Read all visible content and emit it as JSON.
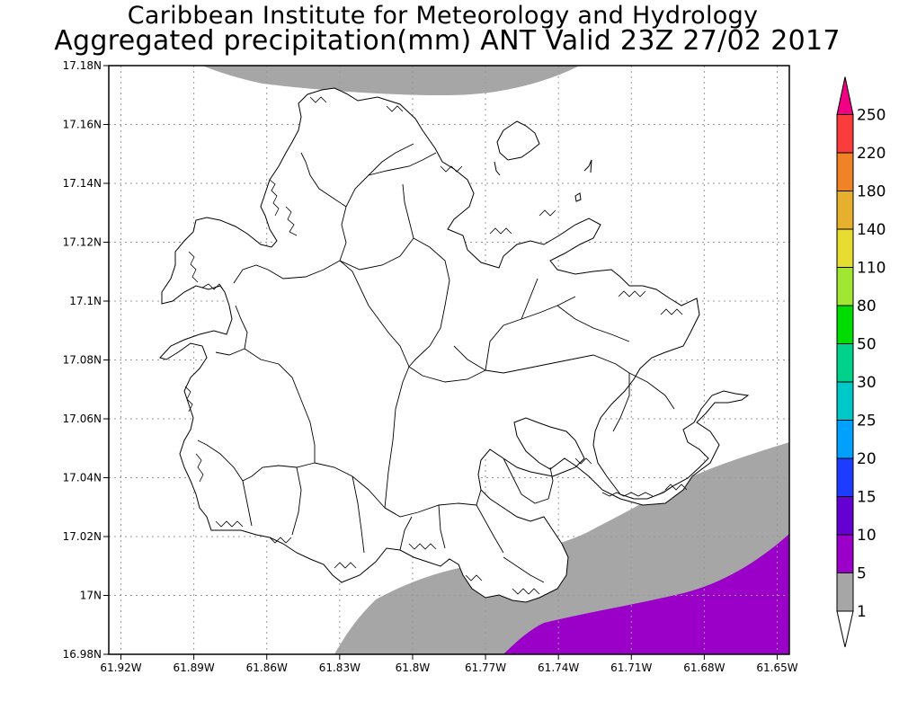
{
  "header": {
    "line1": "Caribbean Institute for Meteorology and Hydrology",
    "line2": "Aggregated precipitation(mm) ANT Valid 23Z 27/02 2017"
  },
  "map": {
    "region": "Antigua",
    "lon_range": [
      -61.925,
      -61.645
    ],
    "lat_range": [
      16.98,
      17.18
    ],
    "grid": true,
    "y_ticks": [
      {
        "lat": 17.18,
        "label": "17.18N"
      },
      {
        "lat": 17.16,
        "label": "17.16N"
      },
      {
        "lat": 17.14,
        "label": "17.14N"
      },
      {
        "lat": 17.12,
        "label": "17.12N"
      },
      {
        "lat": 17.1,
        "label": "17.1N"
      },
      {
        "lat": 17.08,
        "label": "17.08N"
      },
      {
        "lat": 17.06,
        "label": "17.06N"
      },
      {
        "lat": 17.04,
        "label": "17.04N"
      },
      {
        "lat": 17.02,
        "label": "17.02N"
      },
      {
        "lat": 17.0,
        "label": "17N"
      },
      {
        "lat": 16.98,
        "label": "16.98N"
      }
    ],
    "x_ticks": [
      {
        "lon": -61.92,
        "label": "61.92W"
      },
      {
        "lon": -61.89,
        "label": "61.89W"
      },
      {
        "lon": -61.86,
        "label": "61.86W"
      },
      {
        "lon": -61.83,
        "label": "61.83W"
      },
      {
        "lon": -61.8,
        "label": "61.8W"
      },
      {
        "lon": -61.77,
        "label": "61.77W"
      },
      {
        "lon": -61.74,
        "label": "61.74W"
      },
      {
        "lon": -61.71,
        "label": "61.71W"
      },
      {
        "lon": -61.68,
        "label": "61.68W"
      },
      {
        "lon": -61.65,
        "label": "61.65W"
      }
    ],
    "shaded_areas": [
      {
        "name": "north",
        "class": "1-5 mm",
        "color": "#a6a6a6"
      },
      {
        "name": "southeast",
        "class": "1-5 mm",
        "color": "#a6a6a6"
      },
      {
        "name": "southeast-core",
        "class": "5-10 mm",
        "color": "#9b00c9"
      }
    ]
  },
  "colorbar": {
    "bins": [
      {
        "label": "1",
        "color": "#ffffff"
      },
      {
        "label": "5",
        "color": "#a6a6a6"
      },
      {
        "label": "10",
        "color": "#9b00c9"
      },
      {
        "label": "15",
        "color": "#6400d2"
      },
      {
        "label": "20",
        "color": "#1e3cff"
      },
      {
        "label": "25",
        "color": "#00a0ff"
      },
      {
        "label": "30",
        "color": "#00c8c8"
      },
      {
        "label": "50",
        "color": "#00d28c"
      },
      {
        "label": "80",
        "color": "#00dc00"
      },
      {
        "label": "110",
        "color": "#a0e632"
      },
      {
        "label": "140",
        "color": "#e6dc32"
      },
      {
        "label": "180",
        "color": "#e6af2d"
      },
      {
        "label": "220",
        "color": "#f08228"
      },
      {
        "label": "250",
        "color": "#fa3c3c"
      }
    ],
    "top_color": "#f00082"
  }
}
